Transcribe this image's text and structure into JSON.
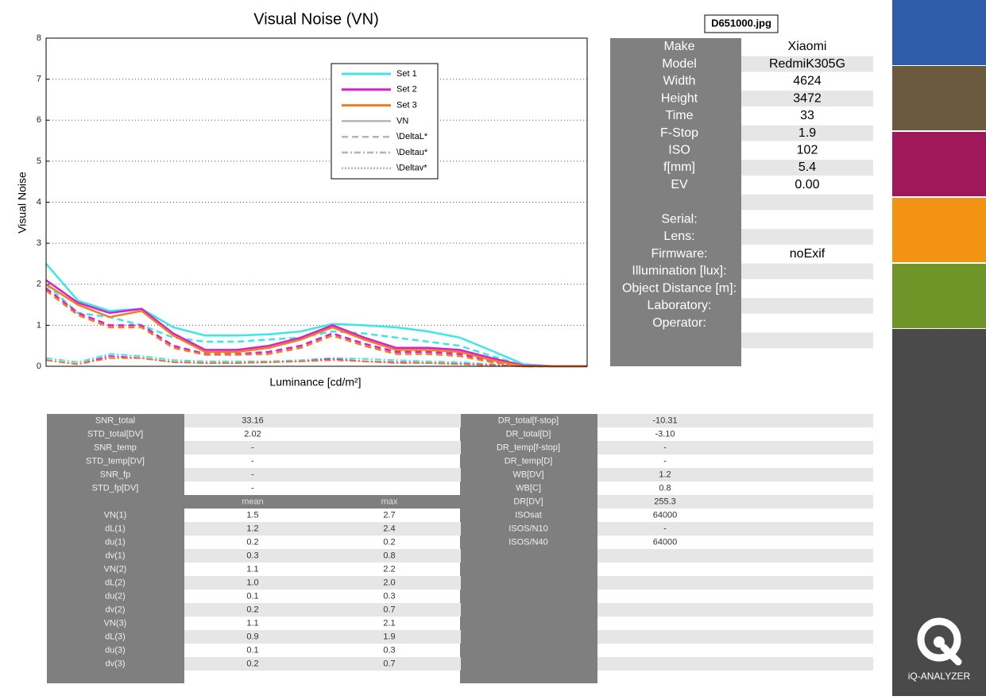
{
  "file_name": "D651000.jpg",
  "chart_data": {
    "type": "line",
    "title": "Visual Noise (VN)",
    "x_label": "Luminance [cd/m²]",
    "y_label": "Visual Noise",
    "categories": [
      null,
      null,
      null,
      null,
      null,
      null,
      null,
      null,
      null,
      null,
      null,
      null,
      null,
      null,
      null,
      null,
      null,
      null
    ],
    "ylim": [
      0,
      8
    ],
    "yticks": [
      0,
      1,
      2,
      3,
      4,
      5,
      6,
      7,
      8
    ],
    "grid": true,
    "series": [
      {
        "name": "Set 1",
        "color": "#3ee6e6",
        "values": [
          2.5,
          1.6,
          1.35,
          1.4,
          0.95,
          0.75,
          0.75,
          0.78,
          0.85,
          1.03,
          1.0,
          0.95,
          0.85,
          0.7,
          0.38,
          0.05,
          0,
          0
        ],
        "dL": [
          2.0,
          1.3,
          1.2,
          1.0,
          0.7,
          0.6,
          0.6,
          0.65,
          0.7,
          0.85,
          0.8,
          0.7,
          0.6,
          0.5,
          0.25,
          0.02,
          0,
          0
        ],
        "du": [
          0.2,
          0.1,
          0.3,
          0.25,
          0.15,
          0.12,
          0.12,
          0.12,
          0.15,
          0.2,
          0.18,
          0.15,
          0.12,
          0.1,
          0.05,
          0,
          0,
          0
        ]
      },
      {
        "name": "Set 2",
        "color": "#d81fd0",
        "values": [
          2.1,
          1.55,
          1.3,
          1.4,
          0.8,
          0.4,
          0.4,
          0.5,
          0.7,
          1.0,
          0.7,
          0.45,
          0.45,
          0.4,
          0.2,
          0.02,
          0,
          0
        ],
        "dL": [
          1.9,
          1.3,
          1.0,
          1.0,
          0.5,
          0.3,
          0.3,
          0.35,
          0.5,
          0.8,
          0.55,
          0.35,
          0.35,
          0.3,
          0.12,
          0,
          0,
          0
        ],
        "du": [
          0.15,
          0.05,
          0.25,
          0.2,
          0.1,
          0.08,
          0.08,
          0.1,
          0.12,
          0.18,
          0.12,
          0.1,
          0.08,
          0.06,
          0.03,
          0,
          0,
          0
        ]
      },
      {
        "name": "Set 3",
        "color": "#ef7d22",
        "values": [
          2.0,
          1.5,
          1.2,
          1.35,
          0.75,
          0.35,
          0.35,
          0.45,
          0.65,
          0.95,
          0.65,
          0.4,
          0.4,
          0.35,
          0.15,
          0,
          0,
          0
        ],
        "dL": [
          1.85,
          1.25,
          0.95,
          0.95,
          0.45,
          0.28,
          0.28,
          0.3,
          0.45,
          0.75,
          0.5,
          0.3,
          0.3,
          0.25,
          0.1,
          0,
          0,
          0
        ],
        "du": [
          0.15,
          0.05,
          0.2,
          0.2,
          0.1,
          0.08,
          0.08,
          0.1,
          0.12,
          0.15,
          0.12,
          0.08,
          0.08,
          0.05,
          0.02,
          0,
          0,
          0
        ]
      }
    ],
    "line_styles": [
      {
        "name": "VN",
        "color": "#b4b4b4",
        "dash": "solid"
      },
      {
        "name": "\\DeltaL*",
        "color": "#b4b4b4",
        "dash": "dashed"
      },
      {
        "name": "\\Deltau*",
        "color": "#b4b4b4",
        "dash": "dashdot"
      },
      {
        "name": "\\Deltav*",
        "color": "#b4b4b4",
        "dash": "dotted"
      }
    ]
  },
  "info": [
    {
      "label": "Make",
      "value": "Xiaomi"
    },
    {
      "label": "Model",
      "value": "RedmiK305G"
    },
    {
      "label": "Width",
      "value": "4624"
    },
    {
      "label": "Height",
      "value": "3472"
    },
    {
      "label": "Time",
      "value": "33"
    },
    {
      "label": "F-Stop",
      "value": "1.9"
    },
    {
      "label": "ISO",
      "value": "102"
    },
    {
      "label": "f[mm]",
      "value": "5.4"
    },
    {
      "label": "EV",
      "value": "0.00"
    },
    {
      "label": "Serial:"
    },
    {
      "label": "Lens:"
    },
    {
      "label": "Firmware:",
      "value": "noExif"
    },
    {
      "label": "Illumination [lux]:"
    },
    {
      "label": "Object Distance [m]:"
    },
    {
      "label": "Laboratory:"
    },
    {
      "label": "Operator:"
    }
  ],
  "table_left": {
    "rows": [
      [
        "SNR_total",
        "33.16"
      ],
      [
        "STD_total[DV]",
        "2.02"
      ],
      [
        "SNR_temp",
        "-"
      ],
      [
        "STD_temp[DV]",
        "-"
      ],
      [
        "SNR_fp",
        "-"
      ],
      [
        "STD_fp[DV]",
        "-"
      ]
    ],
    "header": [
      "mean",
      "max"
    ],
    "stats": [
      [
        "VN(1)",
        "1.5",
        "2.7"
      ],
      [
        "dL(1)",
        "1.2",
        "2.4"
      ],
      [
        "du(1)",
        "0.2",
        "0.2"
      ],
      [
        "dv(1)",
        "0.3",
        "0.8"
      ],
      [
        "VN(2)",
        "1.1",
        "2.2"
      ],
      [
        "dL(2)",
        "1.0",
        "2.0"
      ],
      [
        "du(2)",
        "0.1",
        "0.3"
      ],
      [
        "dv(2)",
        "0.2",
        "0.7"
      ],
      [
        "VN(3)",
        "1.1",
        "2.1"
      ],
      [
        "dL(3)",
        "0.9",
        "1.9"
      ],
      [
        "du(3)",
        "0.1",
        "0.3"
      ],
      [
        "dv(3)",
        "0.2",
        "0.7"
      ]
    ]
  },
  "table_right": {
    "rows": [
      [
        "DR_total[f-stop]",
        "-10.31"
      ],
      [
        "DR_total[D]",
        "-3.10"
      ],
      [
        "DR_temp[f-stop]",
        "-"
      ],
      [
        "DR_temp[D]",
        "-"
      ],
      [
        "WB[DV]",
        "1.2"
      ],
      [
        "WB[C]",
        "0.8"
      ],
      [
        "DR[DV]",
        "255.3"
      ],
      [
        "ISOsat",
        "64000"
      ],
      [
        "ISOS/N10",
        "-"
      ],
      [
        "ISOS/N40",
        "64000"
      ]
    ]
  },
  "brand": "iQ-ANALYZER"
}
